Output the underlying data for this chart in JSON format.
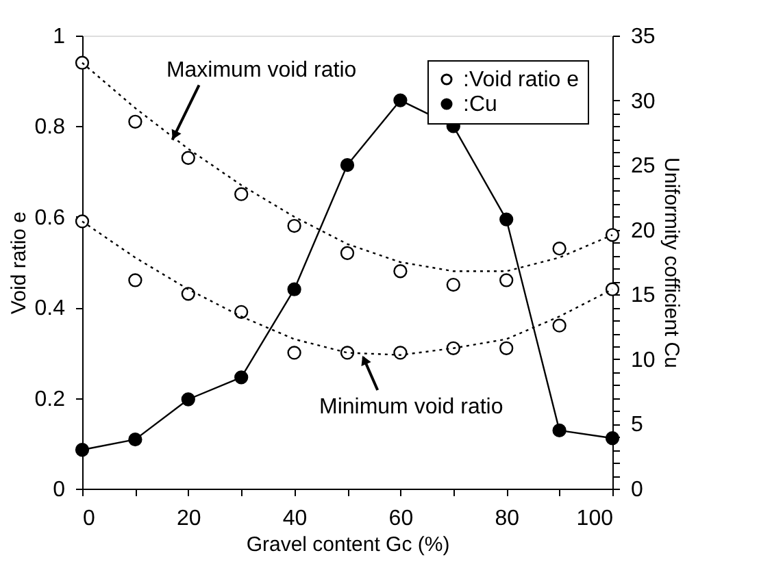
{
  "chart_data": {
    "type": "scatter",
    "xlabel": "Gravel content Gc (%)",
    "ylabel": "Void ratio e",
    "y2label": "Uniformity cofficient Cu",
    "xlim": [
      0,
      100
    ],
    "xticks": [
      0,
      {
        "value": 10,
        "label": null
      },
      20,
      {
        "value": 30,
        "label": null
      },
      40,
      {
        "value": 50,
        "label": null
      },
      60,
      {
        "value": 70,
        "label": null
      },
      80,
      {
        "value": 90,
        "label": null
      },
      100
    ],
    "ylim": [
      0,
      1
    ],
    "yticks": [
      0,
      0.2,
      0.4,
      0.6,
      0.8,
      1
    ],
    "y2lim": [
      0,
      35
    ],
    "y2ticks": [
      0,
      {
        "value": 1,
        "label": null
      },
      {
        "value": 2,
        "label": null
      },
      {
        "value": 3,
        "label": null
      },
      {
        "value": 4,
        "label": null
      },
      5,
      {
        "value": 6,
        "label": null
      },
      {
        "value": 7,
        "label": null
      },
      {
        "value": 8,
        "label": null
      },
      {
        "value": 9,
        "label": null
      },
      10,
      {
        "value": 11,
        "label": null
      },
      {
        "value": 12,
        "label": null
      },
      {
        "value": 13,
        "label": null
      },
      {
        "value": 14,
        "label": null
      },
      15,
      {
        "value": 16,
        "label": null
      },
      {
        "value": 17,
        "label": null
      },
      {
        "value": 18,
        "label": null
      },
      {
        "value": 19,
        "label": null
      },
      20,
      {
        "value": 21,
        "label": null
      },
      {
        "value": 22,
        "label": null
      },
      {
        "value": 23,
        "label": null
      },
      {
        "value": 24,
        "label": null
      },
      25,
      {
        "value": 26,
        "label": null
      },
      {
        "value": 27,
        "label": null
      },
      {
        "value": 28,
        "label": null
      },
      {
        "value": 29,
        "label": null
      },
      30,
      35
    ],
    "grid": false,
    "legend": "top right",
    "x": [
      0,
      10,
      20,
      30,
      40,
      50,
      60,
      70,
      80,
      90,
      100
    ],
    "series": [
      {
        "name": ":Void ratio e",
        "marker": "circle",
        "color": "#000000",
        "values": [
          0.94,
          0.81,
          0.73,
          0.65,
          0.58,
          0.52,
          0.48,
          0.45,
          0.46,
          0.53,
          0.56
        ]
      },
      {
        "marker": "circle",
        "color": "#000000",
        "values": [
          0.59,
          0.46,
          0.43,
          0.39,
          0.3,
          0.3,
          0.3,
          0.31,
          0.31,
          0.36,
          0.44
        ]
      },
      {
        "type": "line",
        "marker": "none",
        "line_style": "dotted",
        "color": "#000000",
        "values": [
          0.94,
          0.84,
          0.75,
          0.67,
          0.6,
          0.54,
          0.5,
          0.48,
          0.48,
          0.51,
          0.56
        ]
      },
      {
        "type": "line",
        "marker": "none",
        "line_style": "dotted",
        "color": "#000000",
        "values": [
          0.59,
          0.51,
          0.44,
          0.38,
          0.33,
          0.3,
          0.295,
          0.31,
          0.33,
          0.38,
          0.44
        ]
      },
      {
        "name": ":Cu",
        "type": "line",
        "marker": "circle",
        "line_style": "solid",
        "axis": "y2",
        "color": "#000000",
        "values": [
          3.0,
          3.8,
          6.9,
          8.6,
          15.4,
          25.0,
          30.0,
          28.0,
          20.8,
          4.5,
          3.9
        ]
      }
    ],
    "annotations": [
      {
        "text": "Maximum void ratio",
        "x": 17,
        "y": 0.77
      },
      {
        "text": "Minimum void ratio",
        "x": 53,
        "y": 0.29
      }
    ]
  }
}
